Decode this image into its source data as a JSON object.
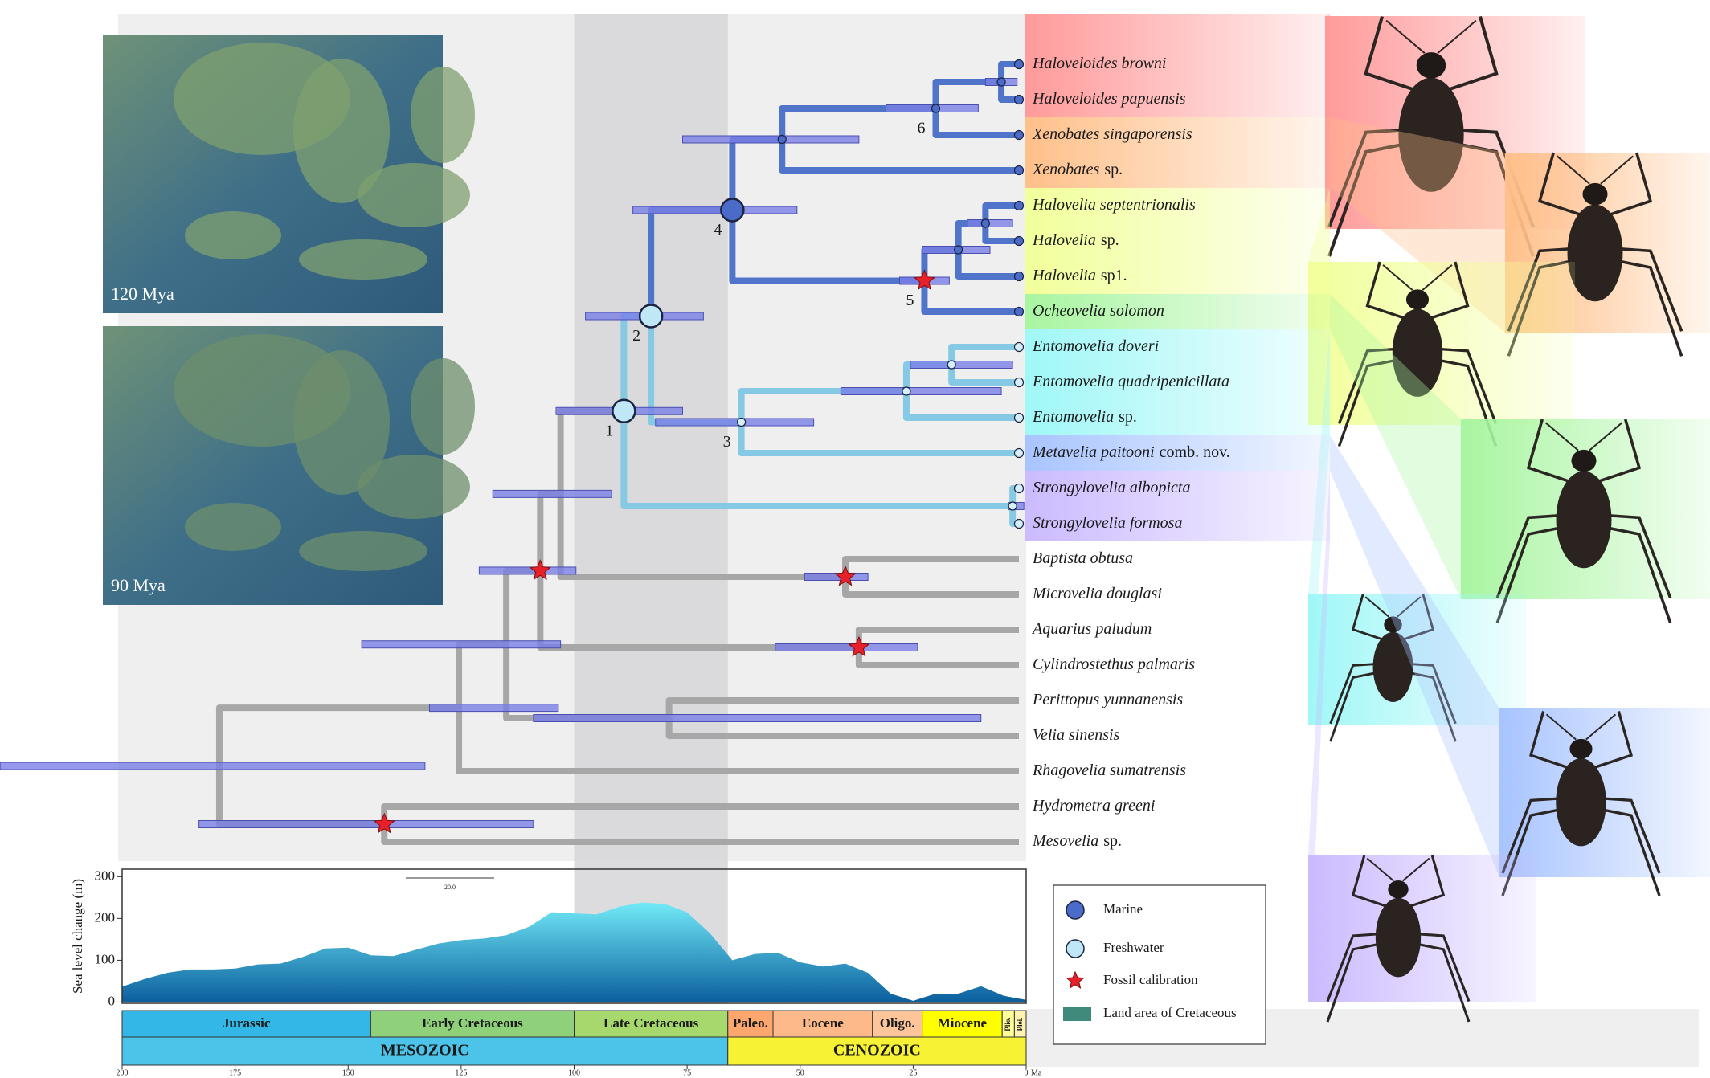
{
  "maps": [
    {
      "label": "120 Mya"
    },
    {
      "label": "90 Mya"
    }
  ],
  "tree": {
    "taxa": [
      {
        "name": "Haloveloides browni",
        "color": "#4f74c9",
        "tip": "#4a6cc8"
      },
      {
        "name": "Haloveloides papuensis",
        "color": "#4f74c9",
        "tip": "#4a6cc8"
      },
      {
        "name": "Xenobates singaporensis",
        "color": "#4f74c9",
        "tip": "#4a6cc8"
      },
      {
        "name": "Xenobates",
        "suffix": "sp.",
        "color": "#4f74c9",
        "tip": "#4a6cc8"
      },
      {
        "name": "Halovelia septentrionalis",
        "color": "#4f74c9",
        "tip": "#4a6cc8"
      },
      {
        "name": "Halovelia",
        "suffix": "sp.",
        "color": "#4f74c9",
        "tip": "#4a6cc8"
      },
      {
        "name": "Halovelia",
        "suffix": "sp1.",
        "color": "#4f74c9",
        "tip": "#4a6cc8"
      },
      {
        "name": "Ocheovelia solomon",
        "color": "#4f74c9",
        "tip": "#4a6cc8"
      },
      {
        "name": "Entomovelia doveri",
        "color": "#86c9e4",
        "tip": "#d5f0fa"
      },
      {
        "name": "Entomovelia quadripenicillata",
        "color": "#86c9e4",
        "tip": "#d5f0fa"
      },
      {
        "name": "Entomovelia",
        "suffix": "sp.",
        "color": "#86c9e4",
        "tip": "#d5f0fa"
      },
      {
        "name": "Metavelia paitooni",
        "suffix": "comb. nov.",
        "color": "#86c9e4",
        "tip": "#d5f0fa"
      },
      {
        "name": "Strongylovelia albopicta",
        "color": "#86c9e4",
        "tip": "#d5f0fa"
      },
      {
        "name": "Strongylovelia formosa",
        "color": "#86c9e4",
        "tip": "#d5f0fa"
      },
      {
        "name": "Baptista obtusa",
        "color": "#a7a7a7"
      },
      {
        "name": "Microvelia douglasi",
        "color": "#a7a7a7"
      },
      {
        "name": "Aquarius paludum",
        "color": "#a7a7a7"
      },
      {
        "name": "Cylindrostethus palmaris",
        "color": "#a7a7a7"
      },
      {
        "name": "Perittopus yunnanensis",
        "color": "#a7a7a7"
      },
      {
        "name": "Velia sinensis",
        "color": "#a7a7a7"
      },
      {
        "name": "Rhagovelia sumatrensis",
        "color": "#a7a7a7"
      },
      {
        "name": "Hydrometra greeni",
        "color": "#a7a7a7"
      },
      {
        "name": "Mesovelia",
        "suffix": "sp.",
        "color": "#a7a7a7"
      }
    ],
    "nodes": [
      {
        "tips": [
          0,
          1
        ],
        "age": 5.5,
        "hpd": [
          2,
          9
        ],
        "color": "#4f74c9",
        "marker": "small",
        "marker_color": "#4a6cc8"
      },
      {
        "tips": [
          0,
          2
        ],
        "age": 20,
        "hpd": [
          10.6,
          31
        ],
        "color": "#4f74c9",
        "marker": "small",
        "marker_color": "#4a6cc8",
        "label": "6"
      },
      {
        "tips": [
          0,
          3
        ],
        "age": 54,
        "hpd": [
          37,
          76
        ],
        "color": "#4f74c9",
        "marker": "small",
        "marker_color": "#4a6cc8"
      },
      {
        "tips": [
          4,
          5
        ],
        "age": 9,
        "hpd": [
          3,
          13
        ],
        "color": "#4f74c9",
        "marker": "small",
        "marker_color": "#4a6cc8"
      },
      {
        "tips": [
          4,
          6
        ],
        "age": 15,
        "hpd": [
          8,
          23
        ],
        "color": "#4f74c9",
        "marker": "small",
        "marker_color": "#4a6cc8"
      },
      {
        "tips": [
          4,
          7
        ],
        "age": 22.5,
        "hpd": [
          17,
          28
        ],
        "color": "#4f74c9",
        "fossil": true,
        "label": "5"
      },
      {
        "tips": [
          0,
          7
        ],
        "age": 65,
        "hpd": [
          50.7,
          87
        ],
        "color": "#4f74c9",
        "marker": "large",
        "marker_color": "#4a6cc8",
        "label": "4"
      },
      {
        "tips": [
          8,
          9
        ],
        "age": 16.5,
        "hpd": [
          3,
          25.6
        ],
        "color": "#86c9e4",
        "marker": "small",
        "marker_color": "#d5f0fa"
      },
      {
        "tips": [
          8,
          10
        ],
        "age": 26.5,
        "hpd": [
          5.5,
          41
        ],
        "color": "#86c9e4",
        "marker": "small",
        "marker_color": "#d5f0fa"
      },
      {
        "tips": [
          8,
          11
        ],
        "age": 63,
        "hpd": [
          47,
          82
        ],
        "color": "#86c9e4",
        "marker": "small",
        "marker_color": "#d5f0fa",
        "label": "3"
      },
      {
        "tips": [
          0,
          11
        ],
        "age": 83,
        "hpd": [
          71.4,
          97.5
        ],
        "color": "#86c9e4",
        "marker": "large",
        "marker_color": "#bfe7f5",
        "label": "2"
      },
      {
        "tips": [
          12,
          13
        ],
        "age": 3,
        "hpd": [
          0.5,
          4
        ],
        "color": "#86c9e4",
        "marker": "small",
        "marker_color": "#d5f0fa"
      },
      {
        "tips": [
          0,
          13
        ],
        "age": 89,
        "hpd": [
          76,
          104
        ],
        "color": "#a7a7a7",
        "marker": "large",
        "marker_color": "#bfe7f5",
        "label": "1"
      },
      {
        "tips": [
          14,
          15
        ],
        "age": 40,
        "hpd": [
          35,
          49
        ],
        "color": "#a7a7a7",
        "fossil": true
      },
      {
        "tips": [
          0,
          15
        ],
        "age": 103,
        "hpd": [
          91.7,
          118
        ],
        "color": "#a7a7a7"
      },
      {
        "tips": [
          16,
          17
        ],
        "age": 37,
        "hpd": [
          24,
          55.5
        ],
        "color": "#a7a7a7",
        "fossil": true
      },
      {
        "tips": [
          0,
          17
        ],
        "age": 107.5,
        "hpd": [
          99.6,
          121
        ],
        "color": "#a7a7a7",
        "fossil": true
      },
      {
        "tips": [
          18,
          19
        ],
        "age": 79,
        "hpd": [
          10,
          109
        ],
        "color": "#a7a7a7"
      },
      {
        "tips": [
          0,
          19
        ],
        "age": 115,
        "hpd": [
          103,
          147
        ],
        "color": "#a7a7a7"
      },
      {
        "tips": [
          0,
          20
        ],
        "age": 125.5,
        "hpd": [
          103.5,
          132
        ],
        "color": "#a7a7a7"
      },
      {
        "tips": [
          21,
          22
        ],
        "age": 142,
        "hpd": [
          109,
          183
        ],
        "color": "#a7a7a7",
        "fossil": true
      },
      {
        "tips": [
          0,
          22
        ],
        "age": 178.5,
        "hpd": [
          133,
          227
        ],
        "color": "#a7a7a7"
      }
    ]
  },
  "chart_data": {
    "type": "area",
    "ylabel": "Sea level change (m)",
    "x": [
      200,
      195,
      190,
      185,
      180,
      175,
      170,
      165,
      160,
      155,
      150,
      145,
      140,
      135,
      130,
      125,
      120,
      115,
      110,
      105,
      100,
      95,
      90,
      85,
      80,
      75,
      70,
      65,
      60,
      55,
      50,
      45,
      40,
      35,
      30,
      25,
      20,
      15,
      10,
      5,
      0
    ],
    "values": [
      37,
      55,
      70,
      78,
      78,
      80,
      90,
      92,
      108,
      128,
      130,
      112,
      110,
      125,
      140,
      148,
      152,
      160,
      180,
      215,
      212,
      210,
      228,
      238,
      235,
      215,
      165,
      100,
      115,
      118,
      95,
      85,
      92,
      70,
      20,
      3,
      20,
      20,
      38,
      15,
      5
    ],
    "colors": [
      "#72eaf7",
      "#0b5f9e"
    ],
    "xlim": [
      200,
      0
    ],
    "ylim": [
      -3,
      318
    ],
    "xticks": [
      200,
      175,
      150,
      125,
      100,
      75,
      50,
      25,
      0
    ],
    "x_unit": "Ma",
    "yticks": [
      0,
      100,
      200,
      300
    ],
    "scale_bar": "20.0"
  },
  "timescale": {
    "periods": [
      {
        "name": "Jurassic",
        "start": 200,
        "end": 145,
        "color": "#33b7e6"
      },
      {
        "name": "Early Cretaceous",
        "start": 145,
        "end": 100,
        "color": "#8fd07a"
      },
      {
        "name": "Late Cretaceous",
        "start": 100,
        "end": 66,
        "color": "#a6d86e"
      },
      {
        "name": "Paleo.",
        "start": 66,
        "end": 56,
        "color": "#fda76f"
      },
      {
        "name": "Eocene",
        "start": 56,
        "end": 34,
        "color": "#fdb98a"
      },
      {
        "name": "Oligo.",
        "start": 34,
        "end": 23,
        "color": "#fec59b"
      },
      {
        "name": "Miocene",
        "start": 23,
        "end": 5.3,
        "color": "#ffff00"
      },
      {
        "name": "Plio.",
        "start": 5.3,
        "end": 2.6,
        "color": "#ffff99"
      },
      {
        "name": "Plei.",
        "start": 2.6,
        "end": 0,
        "color": "#fff2ae"
      }
    ],
    "eras": [
      {
        "name": "MESOZOIC",
        "start": 200,
        "end": 66,
        "color": "#4cc3e8"
      },
      {
        "name": "CENOZOIC",
        "start": 66,
        "end": 0,
        "color": "#f7f233"
      }
    ]
  },
  "legend": [
    {
      "label": "Marine",
      "color": "#4a6cc8"
    },
    {
      "label": "Freshwater",
      "color": "#bfe7f5"
    },
    {
      "label": "Fossil calibration",
      "color": "#e8202a"
    },
    {
      "label": "Land area of Cretaceous",
      "color": "#3f8a7a"
    }
  ]
}
